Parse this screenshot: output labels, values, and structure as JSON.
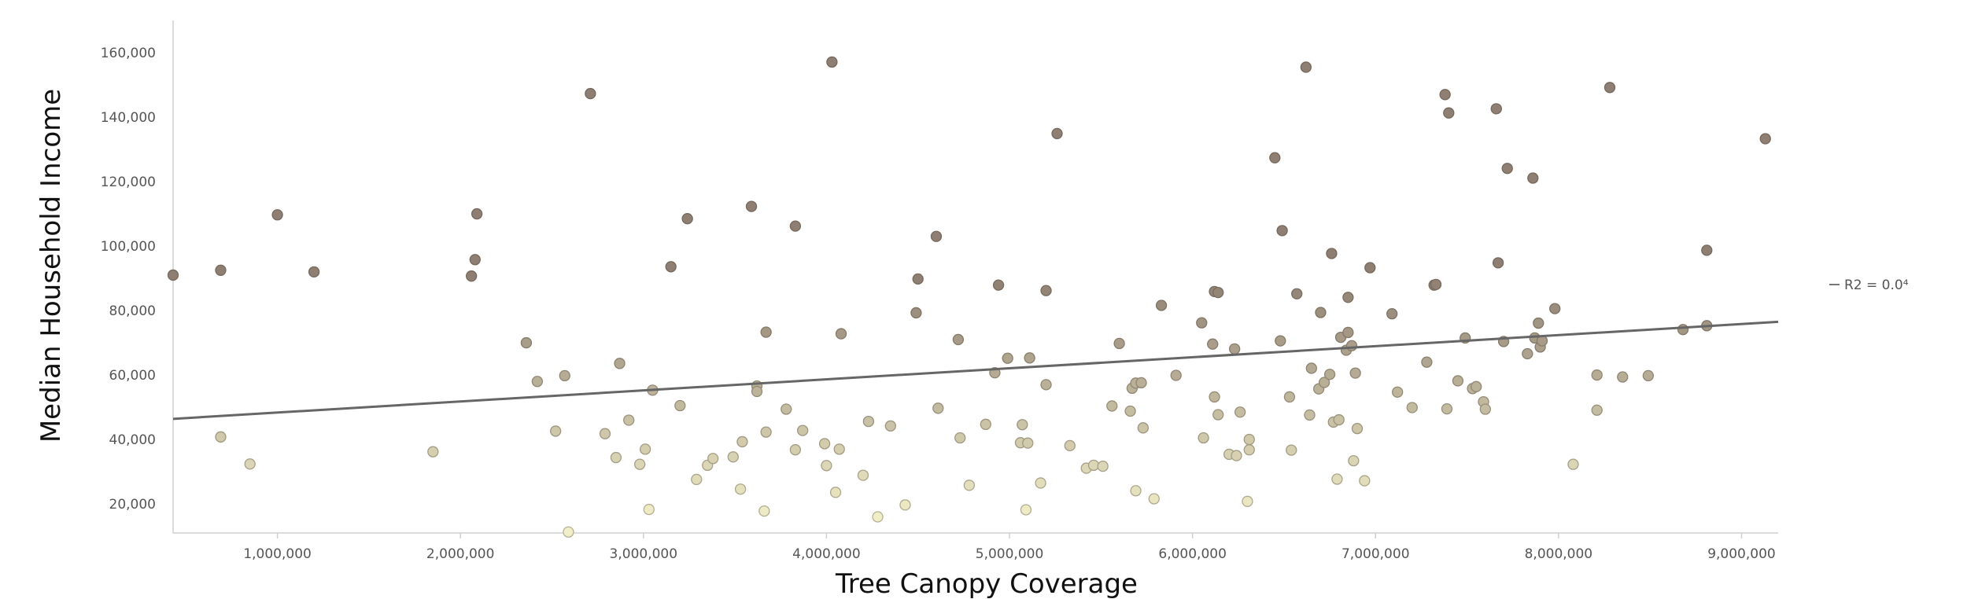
{
  "chart_data": {
    "type": "scatter",
    "xlabel": "Tree Canopy Coverage",
    "ylabel": "Median Household Income",
    "xlim": [
      430000,
      9200000
    ],
    "ylim": [
      11000,
      170000
    ],
    "x_ticks": [
      1000000,
      2000000,
      3000000,
      4000000,
      5000000,
      6000000,
      7000000,
      8000000,
      9000000
    ],
    "x_tick_labels": [
      "1,000,000",
      "2,000,000",
      "3,000,000",
      "4,000,000",
      "5,000,000",
      "6,000,000",
      "7,000,000",
      "8,000,000",
      "9,000,000"
    ],
    "y_ticks": [
      20000,
      40000,
      60000,
      80000,
      100000,
      120000,
      140000,
      160000
    ],
    "y_tick_labels": [
      "20,000",
      "40,000",
      "60,000",
      "80,000",
      "100,000",
      "120,000",
      "140,000",
      "160,000"
    ],
    "grid": false,
    "color_low": "#f1efc8",
    "color_high": "#8e7f72",
    "trendline": {
      "x": [
        430000,
        9200000
      ],
      "y": [
        46400,
        76500
      ],
      "color": "#666666",
      "legend_label": "R2 = 0.0⁴"
    },
    "points": [
      [
        430000,
        91000
      ],
      [
        690000,
        92500
      ],
      [
        690000,
        40800
      ],
      [
        850000,
        32400
      ],
      [
        1000000,
        109700
      ],
      [
        1200000,
        92000
      ],
      [
        1850000,
        36200
      ],
      [
        2060000,
        90700
      ],
      [
        2080000,
        95800
      ],
      [
        2090000,
        110000
      ],
      [
        2360000,
        70000
      ],
      [
        2420000,
        58000
      ],
      [
        2520000,
        42600
      ],
      [
        2570000,
        59800
      ],
      [
        2590000,
        11300
      ],
      [
        2710000,
        147300
      ],
      [
        2790000,
        41800
      ],
      [
        2850000,
        34400
      ],
      [
        2870000,
        63600
      ],
      [
        2920000,
        46000
      ],
      [
        2980000,
        32300
      ],
      [
        3010000,
        37000
      ],
      [
        3030000,
        18300
      ],
      [
        3050000,
        55300
      ],
      [
        3150000,
        93600
      ],
      [
        3200000,
        50500
      ],
      [
        3240000,
        108500
      ],
      [
        3290000,
        27600
      ],
      [
        3350000,
        32000
      ],
      [
        3380000,
        34100
      ],
      [
        3490000,
        34600
      ],
      [
        3530000,
        24600
      ],
      [
        3540000,
        39300
      ],
      [
        3590000,
        112300
      ],
      [
        3620000,
        56600
      ],
      [
        3620000,
        54900
      ],
      [
        3660000,
        17800
      ],
      [
        3670000,
        42300
      ],
      [
        3670000,
        73300
      ],
      [
        3780000,
        49400
      ],
      [
        3830000,
        106200
      ],
      [
        3830000,
        36800
      ],
      [
        3870000,
        42800
      ],
      [
        3990000,
        38700
      ],
      [
        4000000,
        31900
      ],
      [
        4030000,
        157100
      ],
      [
        4050000,
        23600
      ],
      [
        4070000,
        37000
      ],
      [
        4080000,
        72800
      ],
      [
        4200000,
        28900
      ],
      [
        4230000,
        45600
      ],
      [
        4280000,
        16000
      ],
      [
        4350000,
        44200
      ],
      [
        4430000,
        19700
      ],
      [
        4490000,
        79300
      ],
      [
        4500000,
        89800
      ],
      [
        4600000,
        103000
      ],
      [
        4610000,
        49700
      ],
      [
        4720000,
        71000
      ],
      [
        4730000,
        40500
      ],
      [
        4780000,
        25800
      ],
      [
        4870000,
        44700
      ],
      [
        4920000,
        60700
      ],
      [
        4940000,
        87900
      ],
      [
        4990000,
        65200
      ],
      [
        5060000,
        39000
      ],
      [
        5070000,
        44600
      ],
      [
        5090000,
        18200
      ],
      [
        5100000,
        38900
      ],
      [
        5110000,
        65300
      ],
      [
        5170000,
        26500
      ],
      [
        5200000,
        86200
      ],
      [
        5200000,
        57000
      ],
      [
        5260000,
        134900
      ],
      [
        5330000,
        38100
      ],
      [
        5420000,
        31100
      ],
      [
        5460000,
        32000
      ],
      [
        5510000,
        31700
      ],
      [
        5560000,
        50400
      ],
      [
        5600000,
        69800
      ],
      [
        5660000,
        48800
      ],
      [
        5670000,
        55900
      ],
      [
        5690000,
        24100
      ],
      [
        5690000,
        57500
      ],
      [
        5720000,
        57600
      ],
      [
        5730000,
        43600
      ],
      [
        5790000,
        21600
      ],
      [
        5830000,
        81600
      ],
      [
        5910000,
        59900
      ],
      [
        6050000,
        76200
      ],
      [
        6060000,
        40500
      ],
      [
        6110000,
        69600
      ],
      [
        6120000,
        53200
      ],
      [
        6120000,
        85900
      ],
      [
        6140000,
        85600
      ],
      [
        6140000,
        47700
      ],
      [
        6200000,
        35400
      ],
      [
        6230000,
        68100
      ],
      [
        6240000,
        35000
      ],
      [
        6260000,
        48500
      ],
      [
        6300000,
        20800
      ],
      [
        6310000,
        36800
      ],
      [
        6310000,
        40000
      ],
      [
        6450000,
        127400
      ],
      [
        6480000,
        70600
      ],
      [
        6490000,
        104800
      ],
      [
        6530000,
        53200
      ],
      [
        6540000,
        36700
      ],
      [
        6570000,
        85200
      ],
      [
        6620000,
        155500
      ],
      [
        6640000,
        47600
      ],
      [
        6650000,
        62100
      ],
      [
        6690000,
        55700
      ],
      [
        6700000,
        79400
      ],
      [
        6720000,
        57700
      ],
      [
        6750000,
        60200
      ],
      [
        6760000,
        97700
      ],
      [
        6770000,
        45400
      ],
      [
        6790000,
        27700
      ],
      [
        6800000,
        46100
      ],
      [
        6810000,
        71700
      ],
      [
        6840000,
        67700
      ],
      [
        6850000,
        73200
      ],
      [
        6850000,
        84100
      ],
      [
        6870000,
        69100
      ],
      [
        6880000,
        33400
      ],
      [
        6890000,
        60600
      ],
      [
        6900000,
        43400
      ],
      [
        6940000,
        27200
      ],
      [
        6970000,
        93300
      ],
      [
        7090000,
        79000
      ],
      [
        7120000,
        54700
      ],
      [
        7200000,
        49900
      ],
      [
        7280000,
        64000
      ],
      [
        7320000,
        87900
      ],
      [
        7330000,
        88100
      ],
      [
        7380000,
        147000
      ],
      [
        7390000,
        49500
      ],
      [
        7400000,
        141300
      ],
      [
        7450000,
        58200
      ],
      [
        7490000,
        71500
      ],
      [
        7530000,
        55800
      ],
      [
        7550000,
        56400
      ],
      [
        7590000,
        51700
      ],
      [
        7600000,
        49400
      ],
      [
        7660000,
        142600
      ],
      [
        7670000,
        94800
      ],
      [
        7700000,
        70400
      ],
      [
        7720000,
        124100
      ],
      [
        7830000,
        66600
      ],
      [
        7860000,
        121100
      ],
      [
        7870000,
        71500
      ],
      [
        7890000,
        76100
      ],
      [
        7900000,
        68700
      ],
      [
        7910000,
        70600
      ],
      [
        7980000,
        80600
      ],
      [
        8080000,
        32300
      ],
      [
        8210000,
        49100
      ],
      [
        8210000,
        60000
      ],
      [
        8280000,
        149200
      ],
      [
        8350000,
        59400
      ],
      [
        8490000,
        59800
      ],
      [
        8680000,
        74100
      ],
      [
        8810000,
        75300
      ],
      [
        8810000,
        98700
      ],
      [
        9130000,
        133300
      ]
    ]
  }
}
